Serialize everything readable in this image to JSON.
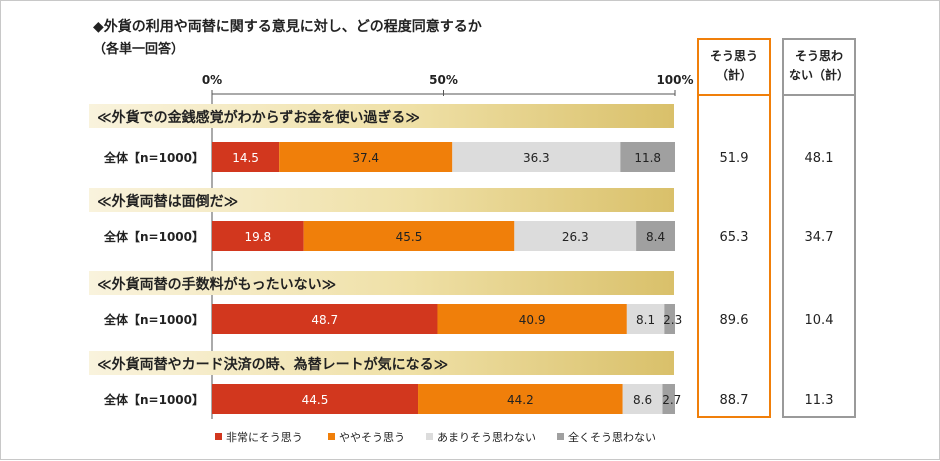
{
  "chart_data": {
    "type": "bar",
    "stacked": true,
    "orientation": "horizontal",
    "title": "◆外貨の利用や両替に関する意見に対し、どの程度同意するか",
    "subtitle": "（各単一回答）",
    "xlim": [
      0,
      100
    ],
    "x_ticks": [
      "0%",
      "50%",
      "100%"
    ],
    "groups": [
      {
        "heading": "≪外貨での金銭感覚がわからずお金を使い過ぎる≫",
        "row_label": "全体【n=1000】",
        "values": [
          14.5,
          37.4,
          36.3,
          11.8
        ],
        "agree": "51.9",
        "disagree": "48.1"
      },
      {
        "heading": "≪外貨両替は面倒だ≫",
        "row_label": "全体【n=1000】",
        "values": [
          19.8,
          45.5,
          26.3,
          8.4
        ],
        "agree": "65.3",
        "disagree": "34.7"
      },
      {
        "heading": "≪外貨両替の手数料がもったいない≫",
        "row_label": "全体【n=1000】",
        "values": [
          48.7,
          40.9,
          8.1,
          2.3
        ],
        "agree": "89.6",
        "disagree": "10.4"
      },
      {
        "heading": "≪外貨両替やカード決済の時、為替レートが気になる≫",
        "row_label": "全体【n=1000】",
        "values": [
          44.5,
          44.2,
          8.6,
          2.7
        ],
        "agree": "88.7",
        "disagree": "11.3"
      }
    ],
    "series": [
      {
        "name": "非常にそう思う",
        "color": "#d2371e",
        "label_color": "#ffffff"
      },
      {
        "name": "ややそう思う",
        "color": "#f07f0a",
        "label_color": "#222222"
      },
      {
        "name": "あまりそう思わない",
        "color": "#dcdcdc",
        "label_color": "#222222"
      },
      {
        "name": "全くそう思わない",
        "color": "#a0a0a0",
        "label_color": "#222222"
      }
    ],
    "summary_columns": [
      {
        "header_lines": [
          "そう思う",
          "（計）"
        ],
        "border_color": "#f07f0a"
      },
      {
        "header_lines": [
          "そう思わ",
          "ない（計）"
        ],
        "border_color": "#9a9a9a"
      }
    ],
    "legend_position": "bottom"
  }
}
